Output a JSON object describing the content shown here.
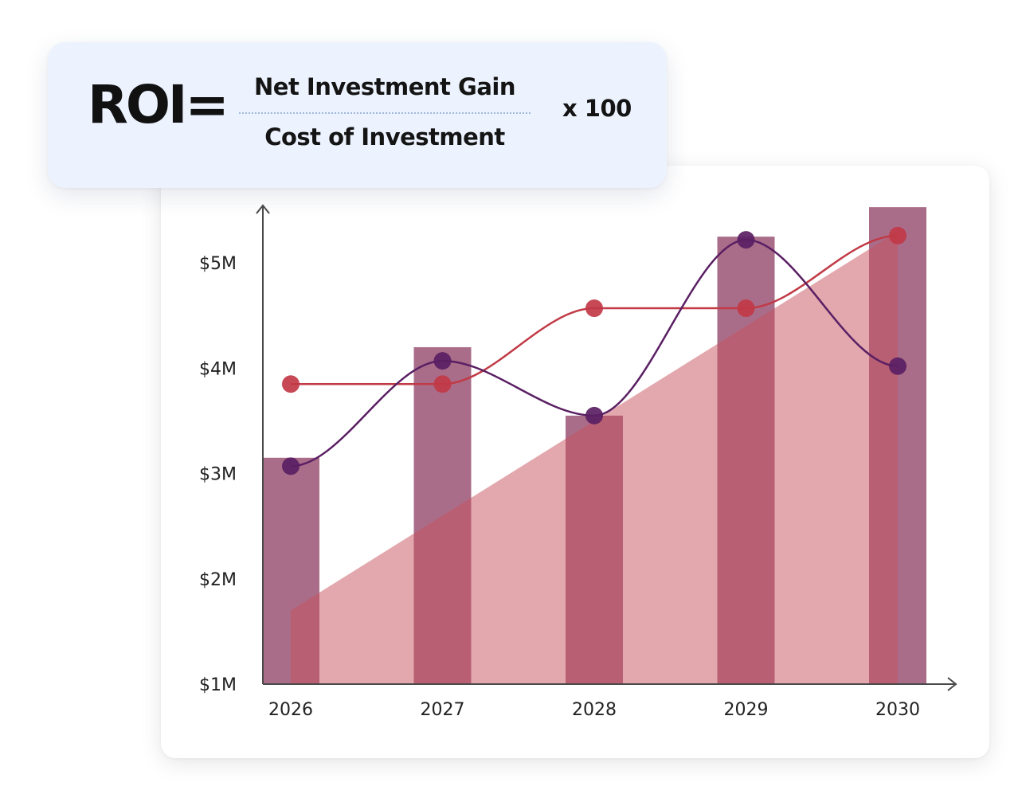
{
  "formula": {
    "lhs": "ROI=",
    "numerator": "Net Investment Gain",
    "denominator": "Cost of Investment",
    "multiplier": "x 100"
  },
  "chart_data": {
    "type": "bar",
    "categories": [
      "2026",
      "2027",
      "2028",
      "2029",
      "2030"
    ],
    "y_ticks": [
      "$1M",
      "$2M",
      "$3M",
      "$4M",
      "$5M"
    ],
    "ylim": [
      1,
      5.75
    ],
    "grid": false,
    "series": [
      {
        "type": "bar",
        "values": [
          3.15,
          4.2,
          3.55,
          5.25,
          5.53
        ],
        "color": "#8e3c62"
      },
      {
        "type": "area",
        "values": [
          1.7,
          2.6,
          3.5,
          4.4,
          5.3
        ],
        "color": "#c8515d"
      },
      {
        "type": "line",
        "values": [
          3.85,
          3.85,
          4.57,
          4.57,
          5.26
        ],
        "color": "#c13a46"
      },
      {
        "type": "line",
        "values": [
          3.07,
          4.07,
          3.55,
          5.22,
          4.02
        ],
        "color": "#5a1f63"
      }
    ]
  }
}
